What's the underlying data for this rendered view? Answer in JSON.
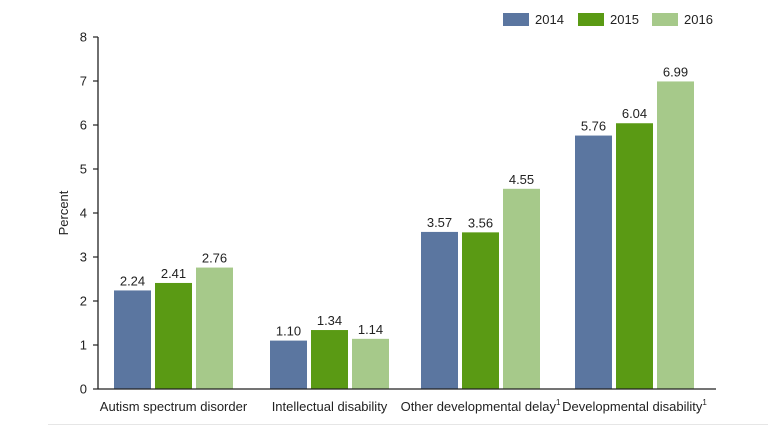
{
  "chart_data": {
    "type": "bar",
    "categories": [
      "Autism spectrum disorder",
      "Intellectual disability",
      "Other developmental delay",
      "Developmental disability"
    ],
    "category_superscripts": [
      "",
      "",
      "1",
      "1"
    ],
    "series": [
      {
        "name": "2014",
        "color": "#5b76a0",
        "values": [
          2.24,
          1.1,
          3.57,
          5.76
        ],
        "labels": [
          "2.24",
          "1.10",
          "3.57",
          "5.76"
        ]
      },
      {
        "name": "2015",
        "color": "#5a9a14",
        "values": [
          2.41,
          1.34,
          3.56,
          6.04
        ],
        "labels": [
          "2.41",
          "1.34",
          "3.56",
          "6.04"
        ]
      },
      {
        "name": "2016",
        "color": "#a6c98a",
        "values": [
          2.76,
          1.14,
          4.55,
          6.99
        ],
        "labels": [
          "2.76",
          "1.14",
          "4.55",
          "6.99"
        ]
      }
    ],
    "title": "",
    "xlabel": "",
    "ylabel": "Percent",
    "ylim": [
      0,
      8
    ],
    "yticks": [
      "0",
      "1",
      "2",
      "3",
      "4",
      "5",
      "6",
      "7",
      "8"
    ],
    "grid": false,
    "legend_position": "top-right"
  }
}
